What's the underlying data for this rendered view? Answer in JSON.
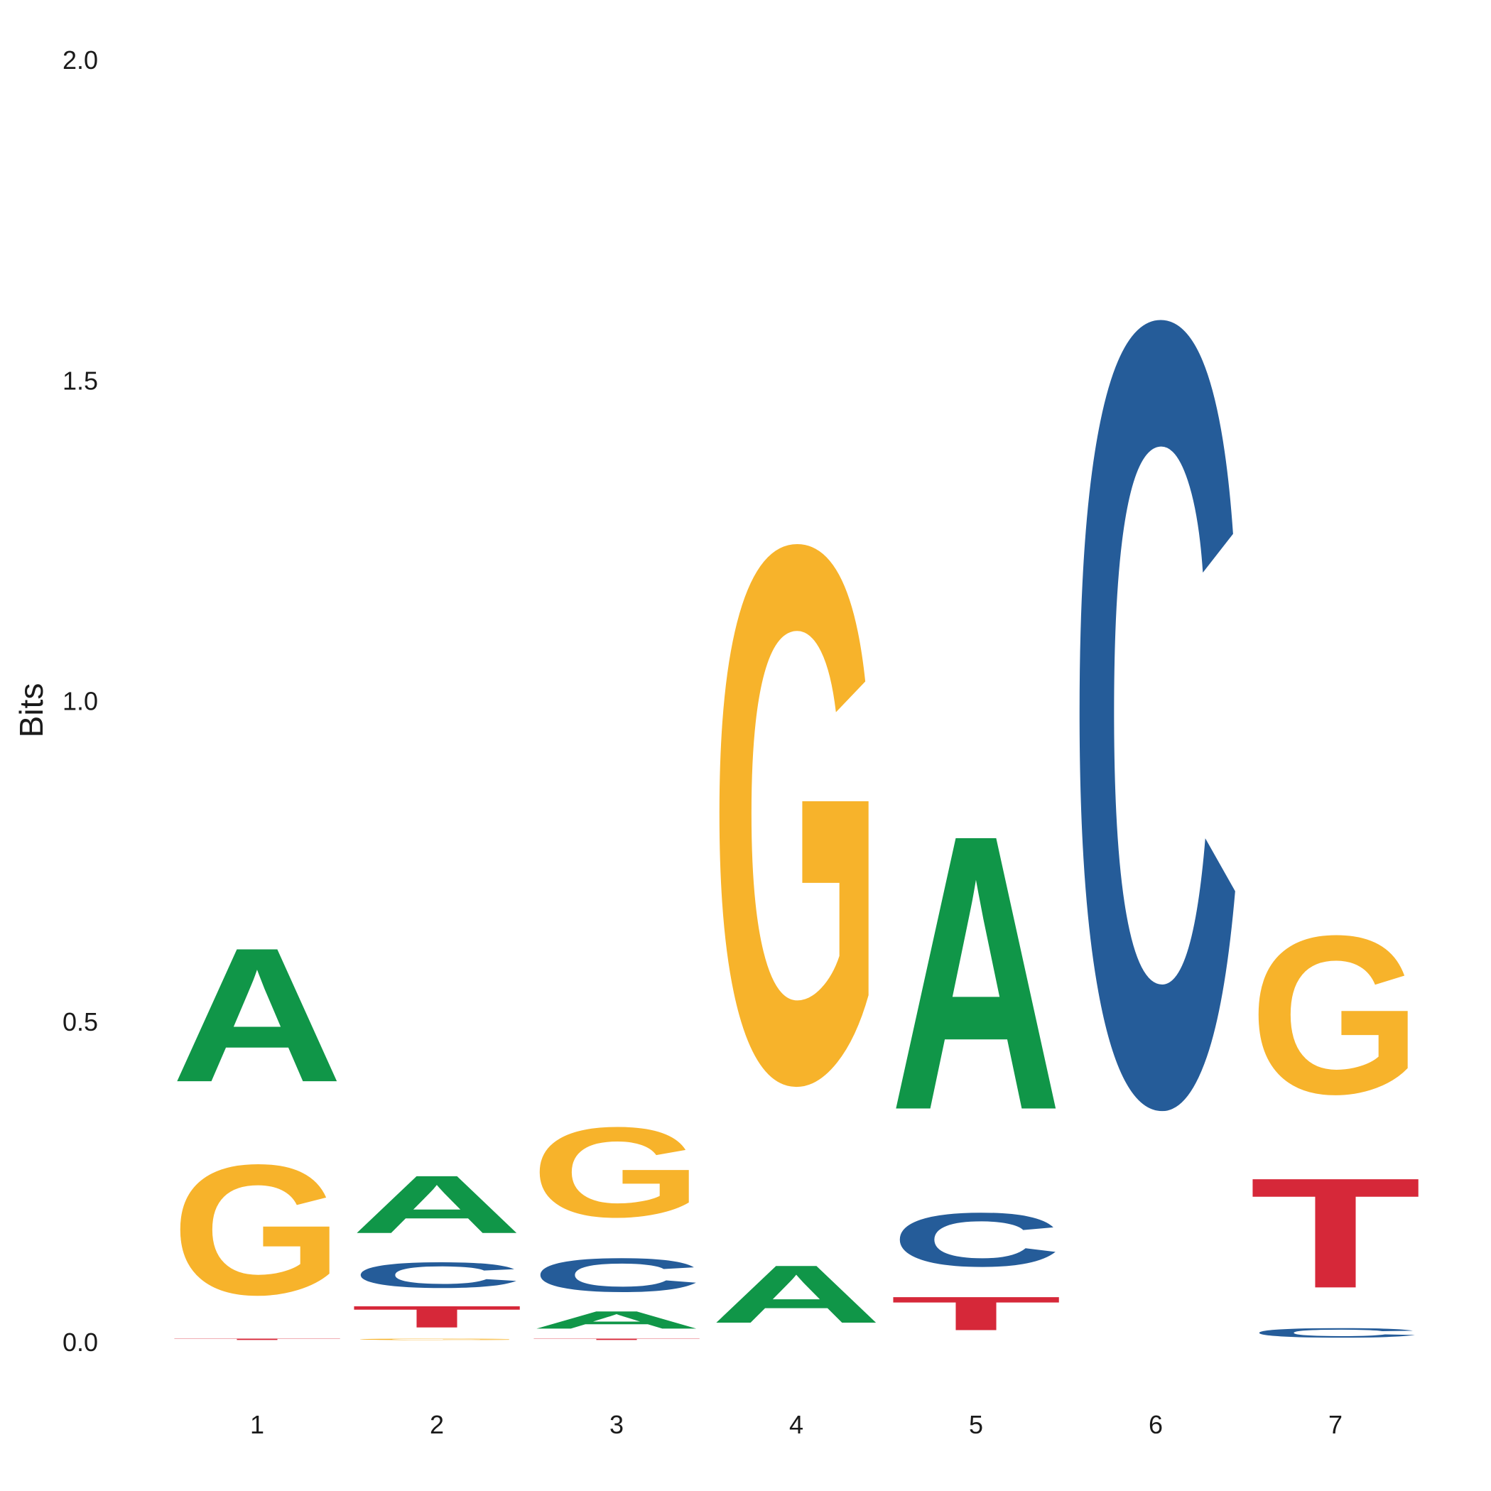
{
  "chart_data": {
    "type": "sequence-logo",
    "ylabel": "Bits",
    "ylim": [
      0,
      2
    ],
    "yticks": [
      "0.0",
      "0.5",
      "1.0",
      "1.5",
      "2.0"
    ],
    "categories": [
      "1",
      "2",
      "3",
      "4",
      "5",
      "6",
      "7"
    ],
    "colors": {
      "A": "#109648",
      "C": "#255C99",
      "G": "#F7B32B",
      "T": "#D62839"
    },
    "positions": [
      {
        "pos": "1",
        "letters": [
          {
            "base": "T",
            "bits": 0.01
          },
          {
            "base": "G",
            "bits": 0.33
          },
          {
            "base": "A",
            "bits": 0.34
          }
        ]
      },
      {
        "pos": "2",
        "letters": [
          {
            "base": "G",
            "bits": 0.01
          },
          {
            "base": "T",
            "bits": 0.06
          },
          {
            "base": "C",
            "bits": 0.07
          },
          {
            "base": "A",
            "bits": 0.15
          }
        ]
      },
      {
        "pos": "3",
        "letters": [
          {
            "base": "T",
            "bits": 0.01
          },
          {
            "base": "A",
            "bits": 0.05
          },
          {
            "base": "C",
            "bits": 0.09
          },
          {
            "base": "G",
            "bits": 0.23
          }
        ]
      },
      {
        "pos": "4",
        "letters": [
          {
            "base": "A",
            "bits": 0.15
          },
          {
            "base": "G",
            "bits": 1.34
          }
        ]
      },
      {
        "pos": "5",
        "letters": [
          {
            "base": "T",
            "bits": 0.09
          },
          {
            "base": "C",
            "bits": 0.14
          },
          {
            "base": "A",
            "bits": 0.69
          }
        ]
      },
      {
        "pos": "6",
        "letters": [
          {
            "base": "C",
            "bits": 1.95
          }
        ]
      },
      {
        "pos": "7",
        "letters": [
          {
            "base": "C",
            "bits": 0.03
          },
          {
            "base": "T",
            "bits": 0.28
          },
          {
            "base": "G",
            "bits": 0.4
          }
        ]
      }
    ]
  }
}
